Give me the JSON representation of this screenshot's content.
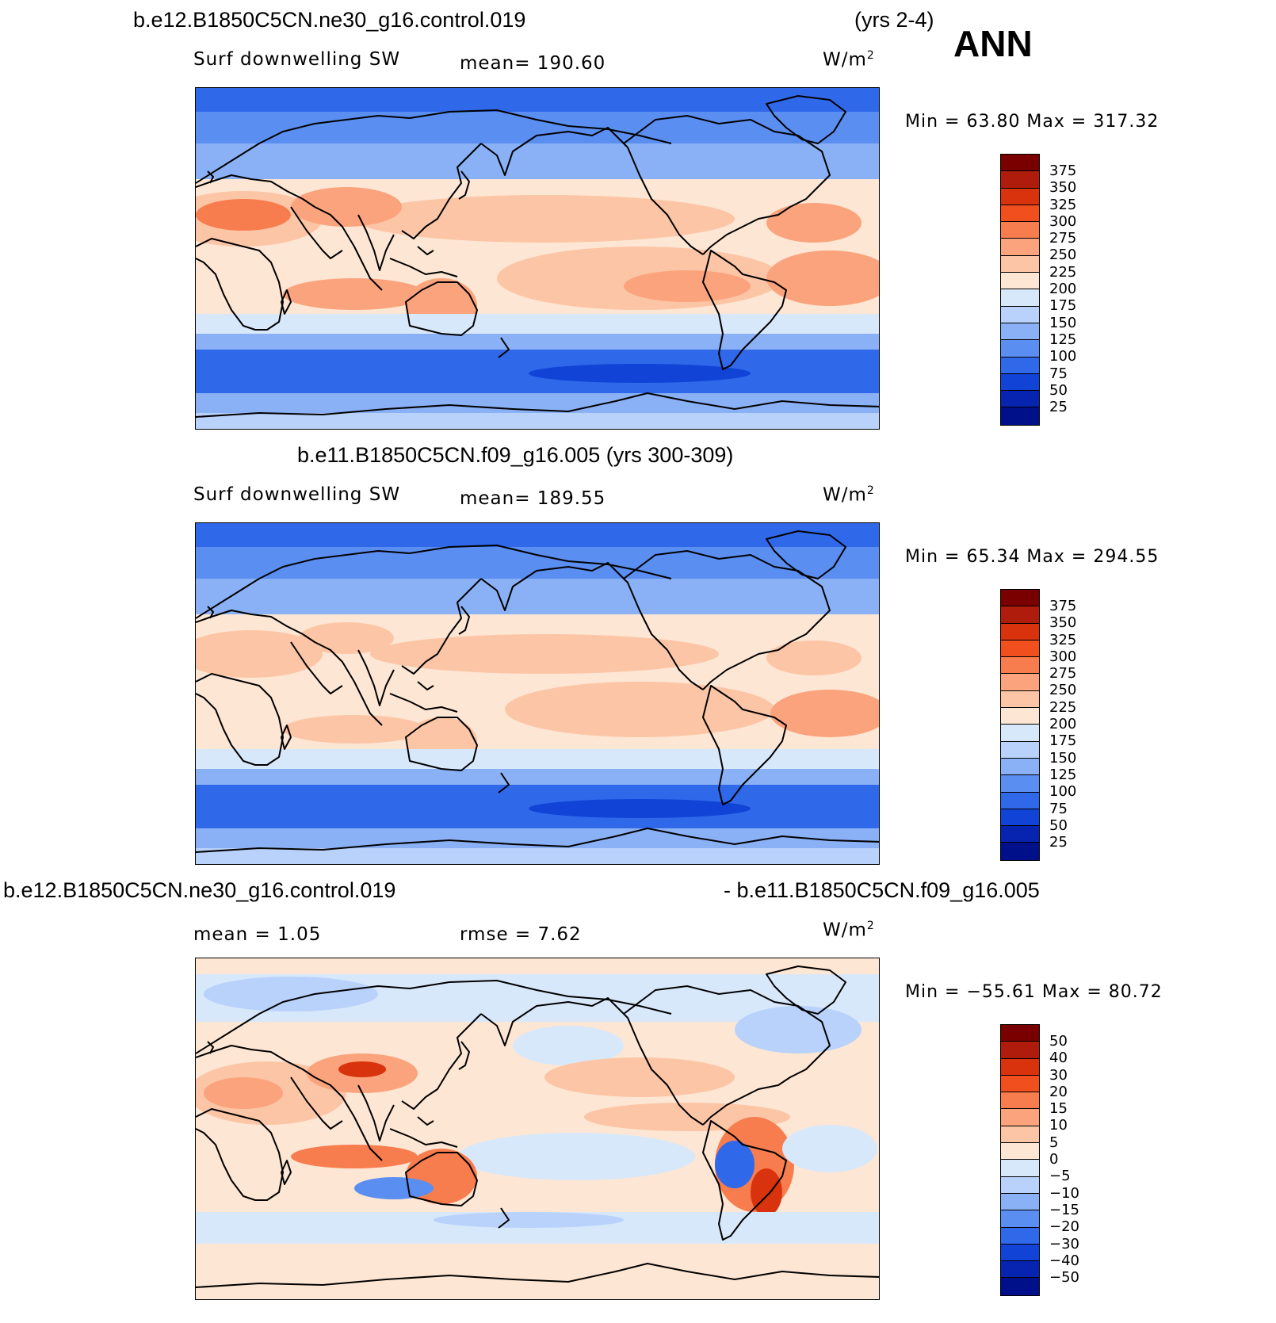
{
  "season": "ANN",
  "panels": [
    {
      "title_left": "b.e12.B1850C5CN.ne30_g16.control.019",
      "title_right": "(yrs 2-4)",
      "variable": "Surf  downwelling  SW",
      "stat1": "mean=  190.60",
      "units": "W/m",
      "units_exp": "2",
      "minmax": "Min  =    63.80  Max  =  317.32",
      "levels": [
        "375",
        "350",
        "325",
        "300",
        "275",
        "250",
        "225",
        "200",
        "175",
        "150",
        "125",
        "100",
        "75",
        "50",
        "25"
      ],
      "colors": [
        "#7a0000",
        "#b01c0c",
        "#d8330d",
        "#f24f1e",
        "#f87d4e",
        "#fba37d",
        "#fcc5a6",
        "#fde6d3",
        "#d8e8fb",
        "#b8d2fb",
        "#8ab1f5",
        "#5a8ef0",
        "#3068ea",
        "#1043d6",
        "#0624b0",
        "#00108a"
      ]
    },
    {
      "title_center": "b.e11.B1850C5CN.f09_g16.005 (yrs 300-309)",
      "variable": "Surf  downwelling  SW",
      "stat1": "mean=  189.55",
      "units": "W/m",
      "units_exp": "2",
      "minmax": "Min  =    65.34  Max  =  294.55",
      "levels": [
        "375",
        "350",
        "325",
        "300",
        "275",
        "250",
        "225",
        "200",
        "175",
        "150",
        "125",
        "100",
        "75",
        "50",
        "25"
      ],
      "colors": [
        "#7a0000",
        "#b01c0c",
        "#d8330d",
        "#f24f1e",
        "#f87d4e",
        "#fba37d",
        "#fcc5a6",
        "#fde6d3",
        "#d8e8fb",
        "#b8d2fb",
        "#8ab1f5",
        "#5a8ef0",
        "#3068ea",
        "#1043d6",
        "#0624b0",
        "#00108a"
      ]
    },
    {
      "title_left": "b.e12.B1850C5CN.ne30_g16.control.019",
      "title_right": "- b.e11.B1850C5CN.f09_g16.005",
      "stat1": "mean  =     1.05",
      "stat2": "rmse  =     7.62",
      "units": "W/m",
      "units_exp": "2",
      "minmax": "Min  =  −55.61  Max  =    80.72",
      "levels": [
        "50",
        "40",
        "30",
        "20",
        "15",
        "10",
        "5",
        "0",
        "−5",
        "−10",
        "−15",
        "−20",
        "−30",
        "−40",
        "−50"
      ],
      "colors": [
        "#7a0000",
        "#b01c0c",
        "#d8330d",
        "#f24f1e",
        "#f87d4e",
        "#fba37d",
        "#fcc5a6",
        "#fde6d3",
        "#d8e8fb",
        "#b8d2fb",
        "#8ab1f5",
        "#5a8ef0",
        "#3068ea",
        "#1043d6",
        "#0624b0",
        "#00108a"
      ]
    }
  ]
}
